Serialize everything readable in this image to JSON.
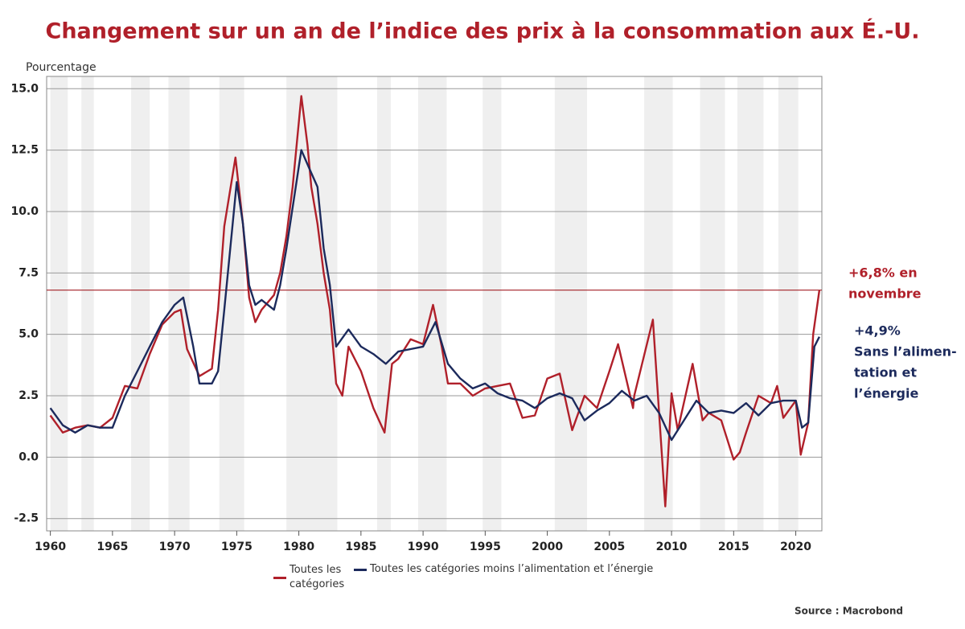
{
  "chart_data": {
    "type": "line",
    "title": "Changement sur un an de l’indice des prix à la consommation aux É.-U.",
    "y_axis_label": "Pourcentage",
    "source": "Source : Macrobond",
    "xlim": [
      1959.7,
      2022.1
    ],
    "xticks": [
      1960,
      1965,
      1970,
      1975,
      1980,
      1985,
      1990,
      1995,
      2000,
      2005,
      2010,
      2015,
      2020
    ],
    "ylim": [
      -3,
      15.5
    ],
    "yticks": [
      {
        "value": 15,
        "label": "15.0"
      },
      12.5,
      {
        "value": 10,
        "label": "10.0"
      },
      7.5,
      {
        "value": 5,
        "label": "5.0"
      },
      2.5,
      {
        "value": 0,
        "label": "0.0"
      },
      -2.5
    ],
    "grid": true,
    "shaded_periods": [
      [
        1960,
        1961.4
      ],
      [
        1962.5,
        1963.5
      ],
      [
        1966.5,
        1968
      ],
      [
        1969.5,
        1971.2
      ],
      [
        1973.6,
        1975.6
      ],
      [
        1979,
        1983.1
      ],
      [
        1986.3,
        1987.4
      ],
      [
        1989.6,
        1991.9
      ],
      [
        1994.8,
        1996.3
      ],
      [
        2000.6,
        2003.2
      ],
      [
        2007.8,
        2010.1
      ],
      [
        2012.3,
        2014.3
      ],
      [
        2015.3,
        2017.4
      ],
      [
        2018.6,
        2020.2
      ]
    ],
    "reference_line": {
      "value": 6.8,
      "color": "#a31f24"
    },
    "annotations": [
      {
        "lines": [
          "+6,8% en",
          "novembre"
        ],
        "color": "#b0202a"
      },
      {
        "lines": [
          "+4,9%",
          "Sans l’alimen-",
          "tation et",
          "l’énergie"
        ],
        "color": "#1c2a5c"
      }
    ],
    "series": [
      {
        "name": "Toutes les catégories",
        "color": "#b0202a",
        "x": [
          1960,
          1961,
          1962,
          1963,
          1964,
          1965,
          1966,
          1967,
          1968,
          1969,
          1970,
          1970.5,
          1971,
          1972,
          1973,
          1973.5,
          1974,
          1974.9,
          1975.5,
          1976,
          1976.5,
          1977,
          1978,
          1978.5,
          1979,
          1979.5,
          1980.2,
          1980.7,
          1981,
          1981.5,
          1982,
          1982.5,
          1983,
          1983.5,
          1984,
          1985,
          1986,
          1986.9,
          1987.5,
          1988,
          1989,
          1990,
          1990.8,
          1991.5,
          1992,
          1993,
          1994,
          1995,
          1996,
          1997,
          1998,
          1999,
          2000,
          2001,
          2002,
          2003,
          2004,
          2005,
          2005.7,
          2006.9,
          2007,
          2008.5,
          2009.5,
          2010,
          2010.5,
          2011.7,
          2012.5,
          2013,
          2014,
          2015,
          2015.5,
          2016,
          2017,
          2018,
          2018.5,
          2019,
          2020,
          2020.4,
          2021,
          2021.4,
          2021.9
        ],
        "values": [
          1.7,
          1.0,
          1.2,
          1.3,
          1.2,
          1.6,
          2.9,
          2.8,
          4.2,
          5.4,
          5.9,
          6.0,
          4.4,
          3.3,
          3.6,
          6.0,
          9.4,
          12.2,
          9.5,
          6.5,
          5.5,
          6.0,
          6.6,
          7.5,
          9.0,
          11.0,
          14.7,
          12.7,
          11.0,
          9.5,
          7.5,
          6.0,
          3.0,
          2.5,
          4.5,
          3.5,
          2.0,
          1.0,
          3.8,
          4.0,
          4.8,
          4.6,
          6.2,
          4.5,
          3.0,
          3.0,
          2.5,
          2.8,
          2.9,
          3.0,
          1.6,
          1.7,
          3.2,
          3.4,
          1.1,
          2.5,
          2.0,
          3.5,
          4.6,
          2.0,
          2.5,
          5.6,
          -2.0,
          2.6,
          1.1,
          3.8,
          1.5,
          1.8,
          1.5,
          -0.1,
          0.2,
          1.0,
          2.5,
          2.2,
          2.9,
          1.6,
          2.3,
          0.1,
          1.4,
          5.0,
          6.8
        ]
      },
      {
        "name": "Toutes les catégories moins l’alimentation et l’énergie",
        "color": "#1c2a5c",
        "x": [
          1960,
          1961,
          1962,
          1963,
          1964,
          1965,
          1966,
          1967,
          1968,
          1969,
          1970,
          1970.7,
          1971.5,
          1972,
          1973,
          1973.5,
          1974,
          1975,
          1975.5,
          1976,
          1976.5,
          1977,
          1978,
          1978.5,
          1979,
          1980.2,
          1980.8,
          1981.5,
          1982,
          1982.5,
          1983,
          1984,
          1985,
          1986,
          1987,
          1988,
          1989,
          1990,
          1991,
          1992,
          1993,
          1994,
          1995,
          1996,
          1997,
          1998,
          1999,
          2000,
          2001,
          2002,
          2003,
          2004,
          2005,
          2006,
          2007,
          2008,
          2009,
          2010,
          2011,
          2012,
          2013,
          2014,
          2015,
          2016,
          2017,
          2018,
          2019,
          2020,
          2020.5,
          2021,
          2021.5,
          2021.9
        ],
        "values": [
          2.0,
          1.3,
          1.0,
          1.3,
          1.2,
          1.2,
          2.5,
          3.5,
          4.5,
          5.5,
          6.2,
          6.5,
          4.5,
          3.0,
          3.0,
          3.5,
          6.0,
          11.2,
          9.5,
          7.0,
          6.2,
          6.4,
          6.0,
          7.0,
          8.5,
          12.5,
          11.8,
          11.0,
          8.5,
          7.0,
          4.5,
          5.2,
          4.5,
          4.2,
          3.8,
          4.3,
          4.4,
          4.5,
          5.5,
          3.8,
          3.2,
          2.8,
          3.0,
          2.6,
          2.4,
          2.3,
          2.0,
          2.4,
          2.6,
          2.4,
          1.5,
          1.9,
          2.2,
          2.7,
          2.3,
          2.5,
          1.8,
          0.7,
          1.5,
          2.3,
          1.8,
          1.9,
          1.8,
          2.2,
          1.7,
          2.2,
          2.3,
          2.3,
          1.2,
          1.4,
          4.5,
          4.9
        ]
      }
    ]
  }
}
